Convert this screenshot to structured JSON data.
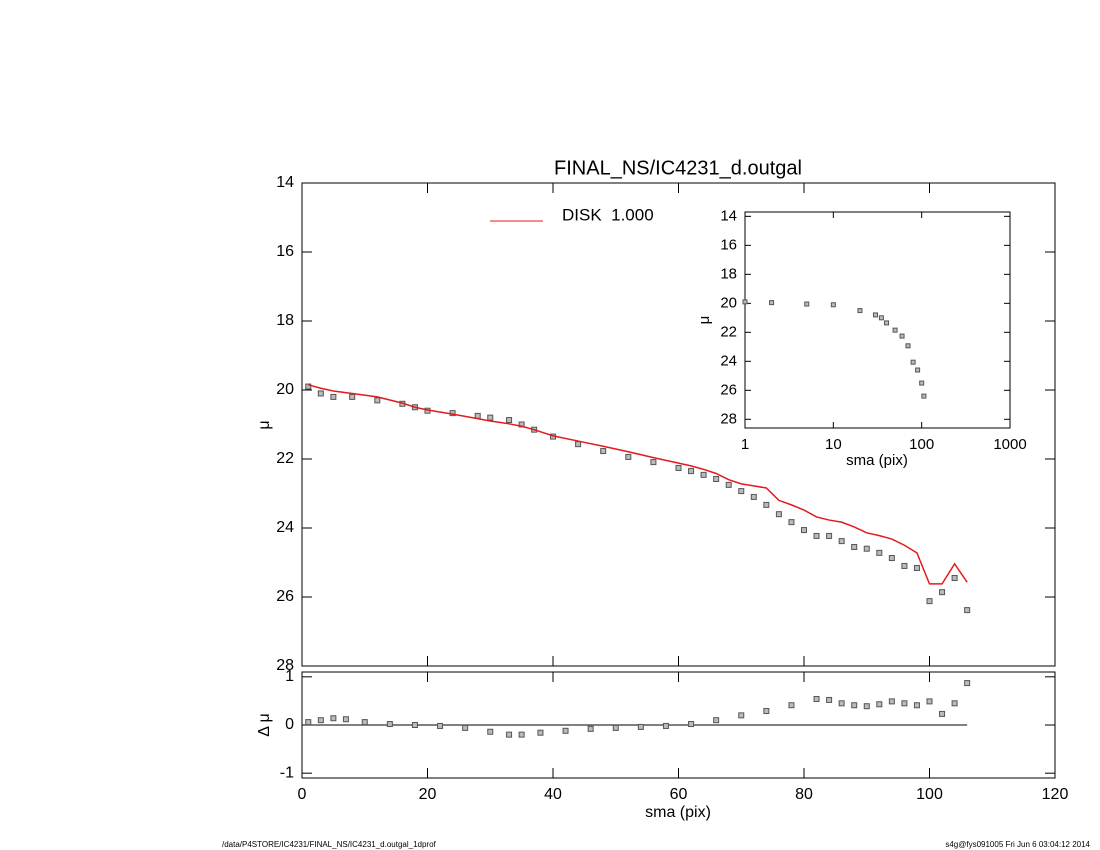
{
  "chart_data": [
    {
      "type": "scatter",
      "title": "FINAL_NS/IC4231_d.outgal",
      "ylabel": "μ",
      "xlim": [
        0,
        120
      ],
      "xticks": [
        0,
        20,
        40,
        60,
        80,
        100,
        120
      ],
      "show_xtick_labels": false,
      "ylim": [
        14,
        28
      ],
      "y_inverted": true,
      "yticks": [
        14,
        16,
        18,
        20,
        22,
        24,
        26,
        28
      ],
      "x": [
        1,
        3,
        5,
        8,
        12,
        16,
        18,
        20,
        24,
        28,
        30,
        33,
        35,
        37,
        40,
        44,
        48,
        52,
        56,
        60,
        62,
        64,
        66,
        68,
        70,
        72,
        74,
        76,
        78,
        80,
        82,
        84,
        86,
        88,
        90,
        92,
        94,
        96,
        98,
        100,
        102,
        104,
        106
      ],
      "series": [
        {
          "style": "markers",
          "color": "#555555",
          "values": [
            19.9,
            20.1,
            20.2,
            20.2,
            20.3,
            20.4,
            20.5,
            20.6,
            20.67,
            20.75,
            20.8,
            20.87,
            21.0,
            21.15,
            21.35,
            21.57,
            21.77,
            21.94,
            22.09,
            22.26,
            22.35,
            22.46,
            22.58,
            22.75,
            22.93,
            23.1,
            23.33,
            23.6,
            23.83,
            24.06,
            24.23,
            24.23,
            24.38,
            24.55,
            24.6,
            24.72,
            24.87,
            25.1,
            25.16,
            26.12,
            25.86,
            25.45,
            26.38
          ]
        },
        {
          "name": "DISK  1.000",
          "style": "line",
          "color": "#e31a1c",
          "values": [
            19.85,
            19.95,
            20.03,
            20.1,
            20.2,
            20.38,
            20.5,
            20.58,
            20.7,
            20.83,
            20.9,
            20.98,
            21.05,
            21.15,
            21.33,
            21.48,
            21.63,
            21.79,
            21.96,
            22.12,
            22.2,
            22.3,
            22.42,
            22.6,
            22.72,
            22.78,
            22.84,
            23.2,
            23.33,
            23.48,
            23.68,
            23.77,
            23.83,
            23.97,
            24.14,
            24.22,
            24.32,
            24.5,
            24.72,
            25.62,
            25.62,
            25.04,
            25.57
          ]
        }
      ]
    },
    {
      "type": "scatter",
      "xlabel": "sma (pix)",
      "ylabel": "Δ μ",
      "xlim": [
        0,
        120
      ],
      "xticks": [
        0,
        20,
        40,
        60,
        80,
        100,
        120
      ],
      "show_xtick_labels": true,
      "ylim": [
        -1.1,
        1.1
      ],
      "y_inverted": false,
      "yticks": [
        -1,
        0,
        1
      ],
      "zero_line": true,
      "x": [
        1,
        3,
        5,
        7,
        10,
        14,
        18,
        22,
        26,
        30,
        33,
        35,
        38,
        42,
        46,
        50,
        54,
        58,
        62,
        66,
        70,
        74,
        78,
        82,
        84,
        86,
        88,
        90,
        92,
        94,
        96,
        98,
        100,
        102,
        104,
        106
      ],
      "series": [
        {
          "style": "markers",
          "color": "#555555",
          "values": [
            0.06,
            0.1,
            0.14,
            0.12,
            0.06,
            0.02,
            0,
            -0.02,
            -0.06,
            -0.14,
            -0.2,
            -0.2,
            -0.16,
            -0.12,
            -0.08,
            -0.06,
            -0.04,
            -0.02,
            0.02,
            0.1,
            0.2,
            0.29,
            0.41,
            0.54,
            0.52,
            0.45,
            0.41,
            0.39,
            0.43,
            0.49,
            0.45,
            0.41,
            0.49,
            0.23,
            0.45,
            0.87
          ]
        }
      ]
    },
    {
      "type": "scatter",
      "xlabel": "sma (pix)",
      "ylabel": "μ",
      "xscale": "log",
      "xlim": [
        1,
        1000
      ],
      "xticks": [
        1,
        10,
        100,
        1000
      ],
      "show_xtick_labels": true,
      "ylim": [
        13.7,
        28.6
      ],
      "y_inverted": true,
      "yticks": [
        14,
        16,
        18,
        20,
        22,
        24,
        26,
        28
      ],
      "x": [
        1,
        2,
        5,
        10,
        20,
        30,
        35,
        40,
        50,
        60,
        70,
        80,
        90,
        100,
        106
      ],
      "series": [
        {
          "style": "markers",
          "color": "#555555",
          "values": [
            19.9,
            19.95,
            20.05,
            20.1,
            20.5,
            20.8,
            21.0,
            21.35,
            21.85,
            22.26,
            22.93,
            24.06,
            24.6,
            25.5,
            26.4
          ]
        }
      ]
    }
  ],
  "footer_left": "/data/P4STORE/IC4231/FINAL_NS/IC4231_d.outgal_1dprof",
  "footer_right": "s4g@fys091005  Fri Jun  6 03:04:12 2014"
}
